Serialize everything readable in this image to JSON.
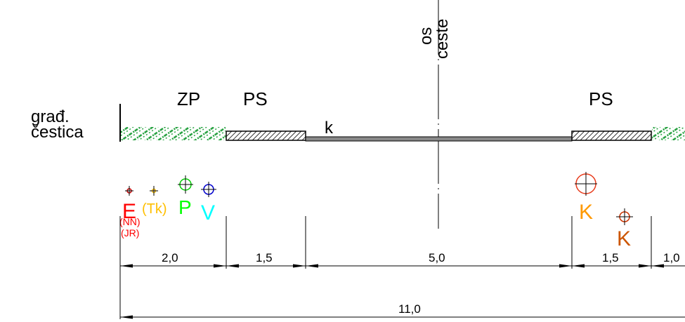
{
  "labels": {
    "axis_line1": "os",
    "axis_line2": "ceste",
    "plot_line1": "građ.",
    "plot_line2": "čestica",
    "zp": "ZP",
    "ps_left": "PS",
    "ps_right": "PS",
    "curb": "k"
  },
  "markers": {
    "e": "E",
    "tk": "(Tk)",
    "p": "P",
    "v": "V",
    "k1": "K",
    "k2": "K",
    "nn": "(NN)",
    "jr": "(JR)"
  },
  "dimensions": {
    "d_zp": "2,0",
    "d_ps_left": "1,5",
    "d_road": "5,0",
    "d_ps_right": "1,5",
    "d_right": "1,0",
    "total": "11,0"
  },
  "colors": {
    "e": "#ff0000",
    "tk": "#ffbf00",
    "p": "#00ff00",
    "v": "#00ffff",
    "v_symbol": "#0000cc",
    "k1": "#ff9900",
    "k1_symbol": "#e83a1a",
    "k2": "#cc5500",
    "k2_symbol": "#cc3300",
    "green_strip": "#1f9e3a"
  }
}
